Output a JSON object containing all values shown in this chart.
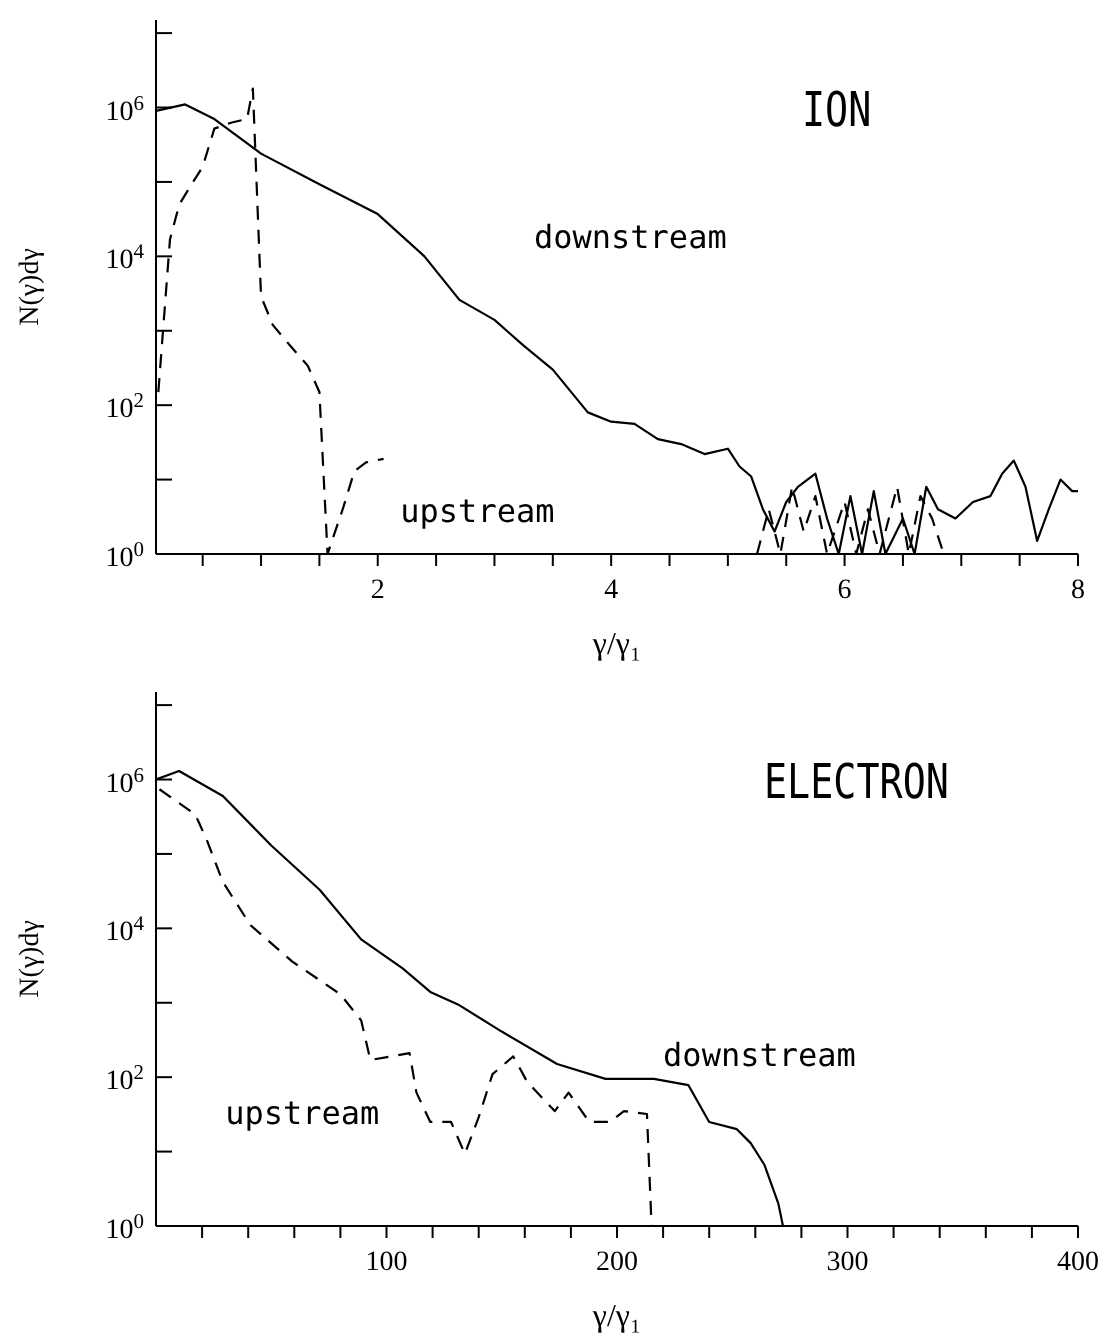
{
  "chart_data": [
    {
      "type": "line",
      "title": "ION",
      "xlabel": "γ/γ₁",
      "ylabel": "N(γ)dγ",
      "log": "y",
      "grid": false,
      "legend": false,
      "marker": "none",
      "xlim": [
        0.1,
        8
      ],
      "xticks": [
        {
          "value": 0.5,
          "label": null
        },
        {
          "value": 1,
          "label": null
        },
        {
          "value": 1.5,
          "label": null
        },
        2,
        {
          "value": 2.5,
          "label": null
        },
        {
          "value": 3,
          "label": null
        },
        {
          "value": 3.5,
          "label": null
        },
        4,
        {
          "value": 4.5,
          "label": null
        },
        {
          "value": 5,
          "label": null
        },
        {
          "value": 5.5,
          "label": null
        },
        6,
        {
          "value": 6.5,
          "label": null
        },
        {
          "value": 7,
          "label": null
        },
        {
          "value": 7.5,
          "label": null
        },
        8
      ],
      "ylim": [
        1,
        15000000
      ],
      "yticks": [
        {
          "value": 1,
          "label": "10$^{0}$"
        },
        {
          "value": 10,
          "label": null
        },
        {
          "value": 100,
          "label": "10$^{2}$"
        },
        {
          "value": 1000,
          "label": null
        },
        {
          "value": 10000,
          "label": "10$^{4}$"
        },
        {
          "value": 100000,
          "label": null
        },
        {
          "value": 1000000,
          "label": "10$^{6}$"
        },
        {
          "value": 10000000,
          "label": null
        }
      ],
      "series": [
        {
          "name": "downstream",
          "color": "#000000",
          "line_style": "solid",
          "x": [
            0.1,
            0.35,
            0.6,
            1.0,
            1.5,
            2.0,
            2.4,
            2.7,
            3.0,
            3.25,
            3.5,
            3.8,
            4.0,
            4.2,
            4.4,
            4.6,
            4.8,
            5.0,
            5.1,
            5.2,
            5.3,
            5.4,
            5.5,
            5.6,
            5.75,
            5.85,
            5.95,
            6.05,
            6.15,
            6.25,
            6.35,
            6.5,
            6.6,
            6.7,
            6.8,
            6.95,
            7.1,
            7.25,
            7.35,
            7.45,
            7.55,
            7.65,
            7.75,
            7.85,
            7.95,
            8.0
          ],
          "values": [
            900000,
            1100000,
            700000,
            240000,
            93000,
            37000,
            10000,
            2600,
            1400,
            630,
            300,
            80,
            60,
            56,
            35,
            30,
            22,
            26,
            15,
            11,
            4,
            2,
            5,
            8,
            12,
            3,
            1,
            6,
            1,
            7,
            1,
            3,
            1,
            8,
            4,
            3,
            5,
            6,
            12,
            18,
            8,
            1.5,
            4,
            10,
            7,
            7
          ]
        },
        {
          "name": "upstream",
          "color": "#000000",
          "line_style": "dashed",
          "x": [
            0.12,
            0.17,
            0.22,
            0.3,
            0.4,
            0.5,
            0.6,
            0.75,
            0.88,
            0.93,
            1.0,
            1.1,
            1.25,
            1.4,
            1.5,
            1.57,
            1.7,
            1.8,
            1.9,
            2.05,
            2.1,
            5.25,
            5.35,
            5.45,
            5.55,
            5.65,
            5.75,
            5.85,
            6.0,
            6.1,
            6.2,
            6.3,
            6.45,
            6.55,
            6.65,
            6.75,
            6.85
          ],
          "values": [
            150,
            1600,
            17000,
            50000,
            90000,
            160000,
            520000,
            630000,
            700000,
            1800000,
            2900,
            1200,
            630,
            340,
            150,
            1,
            4,
            13,
            17,
            19,
            null,
            1,
            4,
            1,
            8,
            2,
            6,
            1,
            5,
            1,
            4,
            1,
            8,
            1,
            6,
            3,
            1
          ]
        }
      ]
    },
    {
      "type": "line",
      "title": "ELECTRON",
      "xlabel": "γ/γ₁",
      "ylabel": "N(γ)dγ",
      "log": "y",
      "grid": false,
      "legend": false,
      "marker": "none",
      "xlim": [
        0,
        400
      ],
      "xticks": [
        {
          "value": 20,
          "label": null
        },
        {
          "value": 40,
          "label": null
        },
        {
          "value": 60,
          "label": null
        },
        {
          "value": 80,
          "label": null
        },
        100,
        {
          "value": 120,
          "label": null
        },
        {
          "value": 140,
          "label": null
        },
        {
          "value": 160,
          "label": null
        },
        {
          "value": 180,
          "label": null
        },
        200,
        {
          "value": 220,
          "label": null
        },
        {
          "value": 240,
          "label": null
        },
        {
          "value": 260,
          "label": null
        },
        {
          "value": 280,
          "label": null
        },
        300,
        {
          "value": 320,
          "label": null
        },
        {
          "value": 340,
          "label": null
        },
        {
          "value": 360,
          "label": null
        },
        {
          "value": 380,
          "label": null
        },
        400
      ],
      "ylim": [
        1,
        15000000
      ],
      "yticks": [
        {
          "value": 1,
          "label": "10$^{0}$"
        },
        {
          "value": 10,
          "label": null
        },
        {
          "value": 100,
          "label": "10$^{2}$"
        },
        {
          "value": 1000,
          "label": null
        },
        {
          "value": 10000,
          "label": "10$^{4}$"
        },
        {
          "value": 100000,
          "label": null
        },
        {
          "value": 1000000,
          "label": "10$^{6}$"
        },
        {
          "value": 10000000,
          "label": null
        }
      ],
      "series": [
        {
          "name": "downstream",
          "color": "#000000",
          "line_style": "solid",
          "x": [
            0,
            10,
            29,
            50,
            71,
            89,
            107,
            119,
            131,
            150,
            174,
            195,
            216,
            231,
            240,
            252,
            258,
            264,
            270,
            272
          ],
          "values": [
            1000000,
            1300000,
            600000,
            130000,
            33000,
            7100,
            2900,
            1400,
            950,
            410,
            150,
            95,
            95,
            78,
            25,
            20,
            13,
            6.6,
            2,
            1
          ]
        },
        {
          "name": "upstream",
          "color": "#000000",
          "line_style": "dashed",
          "x": [
            1.5,
            17,
            22,
            29,
            41,
            59,
            80,
            89,
            93,
            110,
            113,
            119,
            128,
            134,
            140,
            146,
            155,
            161,
            173,
            179,
            188,
            197,
            203,
            213,
            215
          ],
          "values": [
            740000,
            340000,
            155000,
            42000,
            11000,
            3600,
            1300,
            580,
            170,
            210,
            62,
            25,
            25,
            9.3,
            29,
            110,
            190,
            87,
            35,
            62,
            25,
            25,
            35,
            32,
            1
          ]
        }
      ]
    }
  ]
}
